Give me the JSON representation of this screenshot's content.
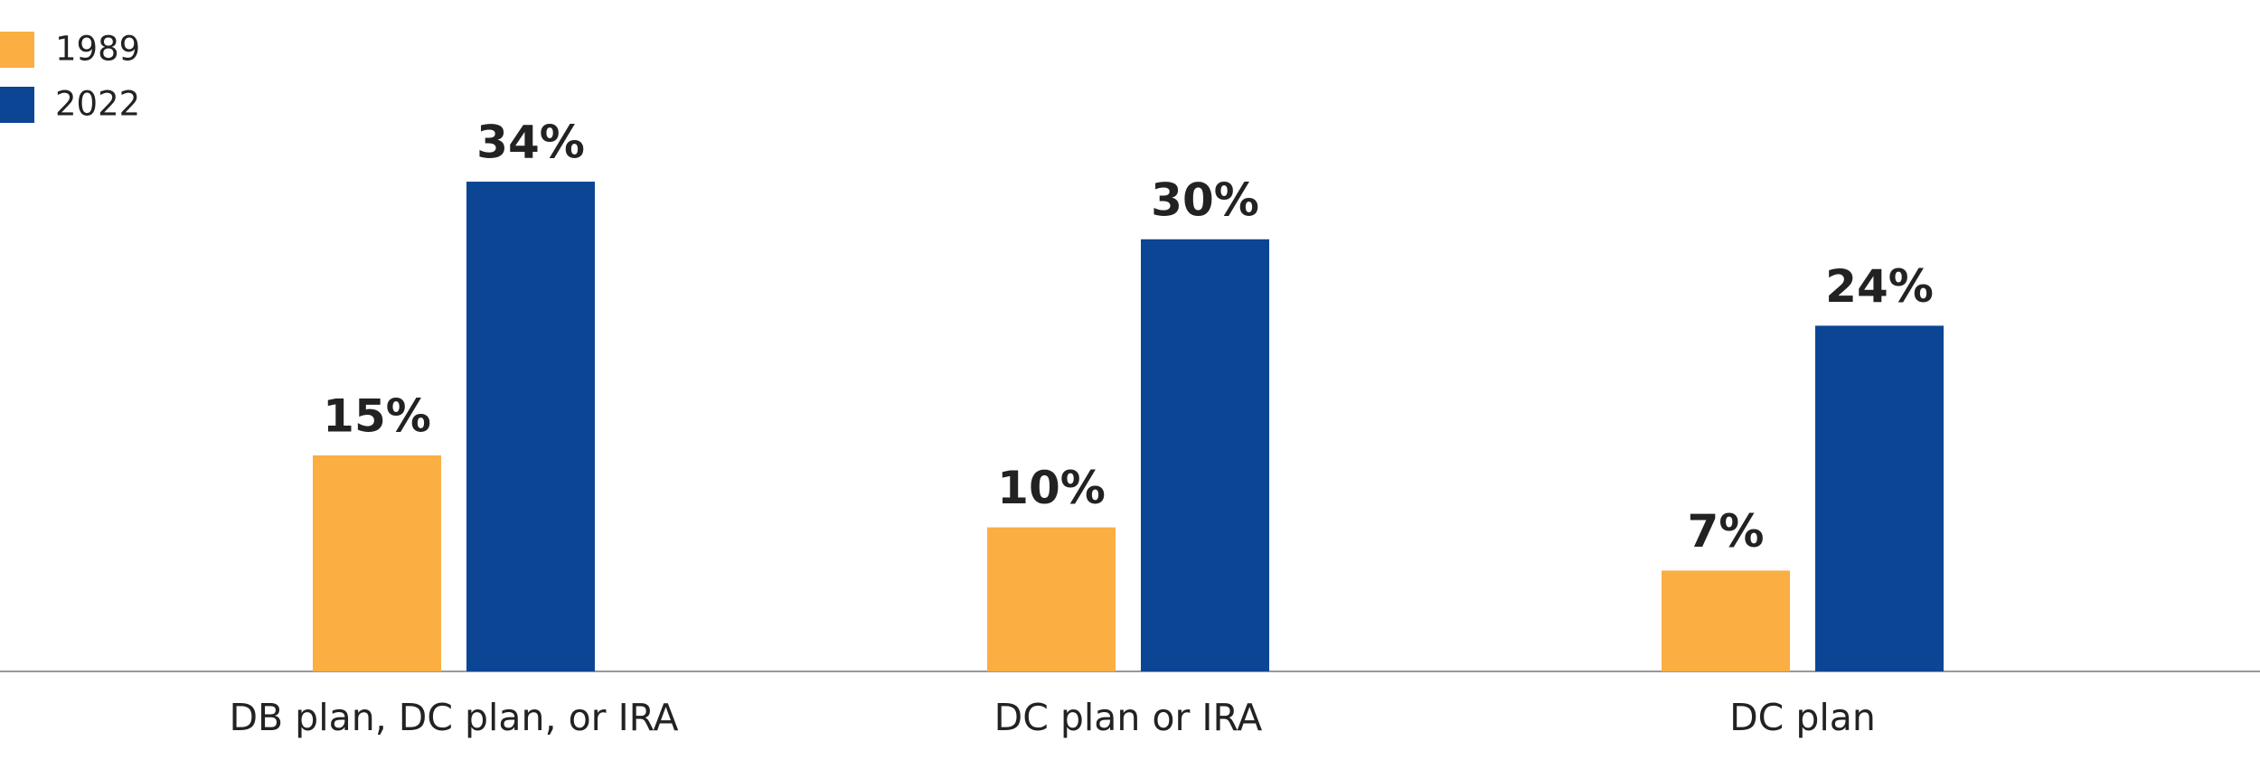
{
  "chart_data": {
    "type": "bar",
    "categories": [
      "DB plan, DC plan, or IRA",
      "DC plan or IRA",
      "DC plan"
    ],
    "series": [
      {
        "name": "1989",
        "color": "#fbae42",
        "values": [
          15,
          10,
          7
        ],
        "value_labels": [
          "15%",
          "10%",
          "7%"
        ]
      },
      {
        "name": "2022",
        "color": "#0c4594",
        "values": [
          34,
          30,
          24
        ],
        "value_labels": [
          "34%",
          "30%",
          "24%"
        ]
      }
    ]
  }
}
